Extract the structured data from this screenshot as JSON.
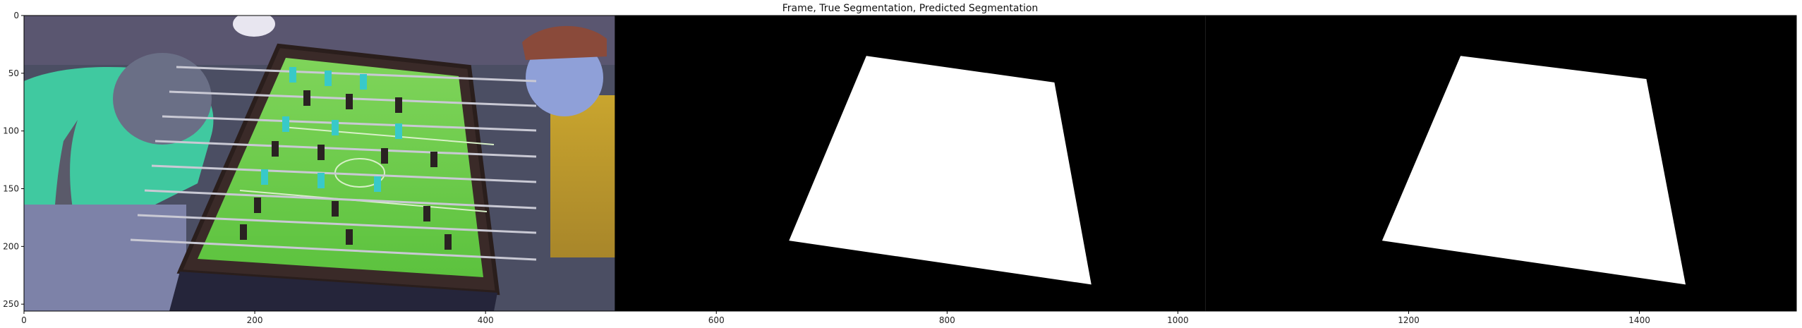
{
  "chart_data": {
    "type": "image",
    "title": "Frame, True Segmentation, Predicted Segmentation",
    "xlabel": "",
    "ylabel": "",
    "xlim": [
      0,
      1536
    ],
    "ylim": [
      256,
      0
    ],
    "x_ticks": [
      0,
      200,
      400,
      600,
      800,
      1000,
      1200,
      1400
    ],
    "y_ticks": [
      0,
      50,
      100,
      150,
      200,
      250
    ],
    "panels": [
      {
        "name": "Frame",
        "x_range": [
          0,
          512
        ],
        "content": "RGB video frame of a foosball table with players"
      },
      {
        "name": "True Segmentation",
        "x_range": [
          512,
          1024
        ],
        "mask_polygon": [
          [
            730,
            35
          ],
          [
            893,
            58
          ],
          [
            925,
            233
          ],
          [
            663,
            195
          ]
        ]
      },
      {
        "name": "Predicted Segmentation",
        "x_range": [
          1024,
          1536
        ],
        "mask_polygon": [
          [
            1245,
            35
          ],
          [
            1406,
            55
          ],
          [
            1440,
            233
          ],
          [
            1177,
            195
          ]
        ]
      }
    ]
  },
  "colors": {
    "mask_background": "#000000",
    "mask_foreground": "#ffffff",
    "axis": "#000000",
    "field_green": "#6fcf4a",
    "table_wood": "#3a2a28"
  }
}
